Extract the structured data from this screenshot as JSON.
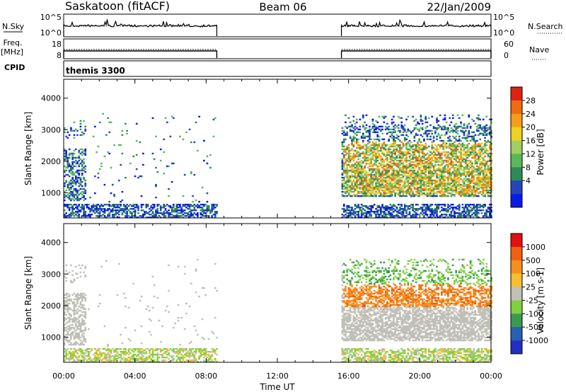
{
  "header": {
    "station": "Saskatoon (fitACF)",
    "beam": "Beam 06",
    "date": "22/Jan/2009"
  },
  "nsky_panel": {
    "left_label": "N.Sky",
    "left_ticks": [
      "10^5",
      "10^0"
    ],
    "right_label": "N.Search",
    "right_ticks": [
      "10^5",
      "10^0"
    ]
  },
  "freq_panel": {
    "left_label_1": "Freq.",
    "left_label_2": "[MHz]",
    "left_ticks": [
      "18",
      "8"
    ],
    "right_label": "Nave",
    "right_ticks": [
      "60",
      "0"
    ]
  },
  "cpid_panel": {
    "label": "CPID",
    "text": "themis 3300"
  },
  "colors": {
    "power": [
      "#0a1ae6",
      "#2446b8",
      "#2e8b57",
      "#58b85a",
      "#a0d060",
      "#f0d020",
      "#f59c1a",
      "#ef6a10",
      "#e02010"
    ],
    "velocity": [
      "#2030c0",
      "#2860b0",
      "#3a9a50",
      "#80d040",
      "#c0c0b8",
      "#f4c030",
      "#f59020",
      "#f06010",
      "#e01010"
    ]
  },
  "chart_data": [
    {
      "type": "heatmap",
      "name": "Power",
      "xlabel": "Time UT",
      "ylabel": "Slant Range [km]",
      "xlim": [
        0,
        24
      ],
      "ylim": [
        200,
        4600
      ],
      "x_ticks": [
        "00:00",
        "04:00",
        "08:00",
        "12:00",
        "16:00",
        "20:00",
        "00:00"
      ],
      "y_ticks": [
        1000,
        2000,
        3000,
        4000
      ],
      "colorbar_label": "Power [dB]",
      "colorbar_ticks": [
        "28",
        "24",
        "20",
        "16",
        "12",
        "8",
        "4"
      ],
      "data_intervals_hours": [
        [
          0,
          8.6
        ],
        [
          15.6,
          24
        ]
      ]
    },
    {
      "type": "heatmap",
      "name": "Velocity",
      "xlabel": "Time UT",
      "ylabel": "Slant Range [km]",
      "xlim": [
        0,
        24
      ],
      "ylim": [
        200,
        4600
      ],
      "x_ticks": [
        "00:00",
        "04:00",
        "08:00",
        "12:00",
        "16:00",
        "20:00",
        "00:00"
      ],
      "y_ticks": [
        1000,
        2000,
        3000,
        4000
      ],
      "colorbar_label": "Velocity [m s-1]",
      "colorbar_ticks": [
        "1000",
        "500",
        "100",
        "25",
        "-25",
        "-100",
        "-500",
        "-1000"
      ],
      "data_intervals_hours": [
        [
          0,
          8.6
        ],
        [
          15.6,
          24
        ]
      ]
    }
  ],
  "time_axis": {
    "label": "Time UT",
    "ticks": [
      "00:00",
      "04:00",
      "08:00",
      "12:00",
      "16:00",
      "20:00",
      "00:00"
    ]
  }
}
